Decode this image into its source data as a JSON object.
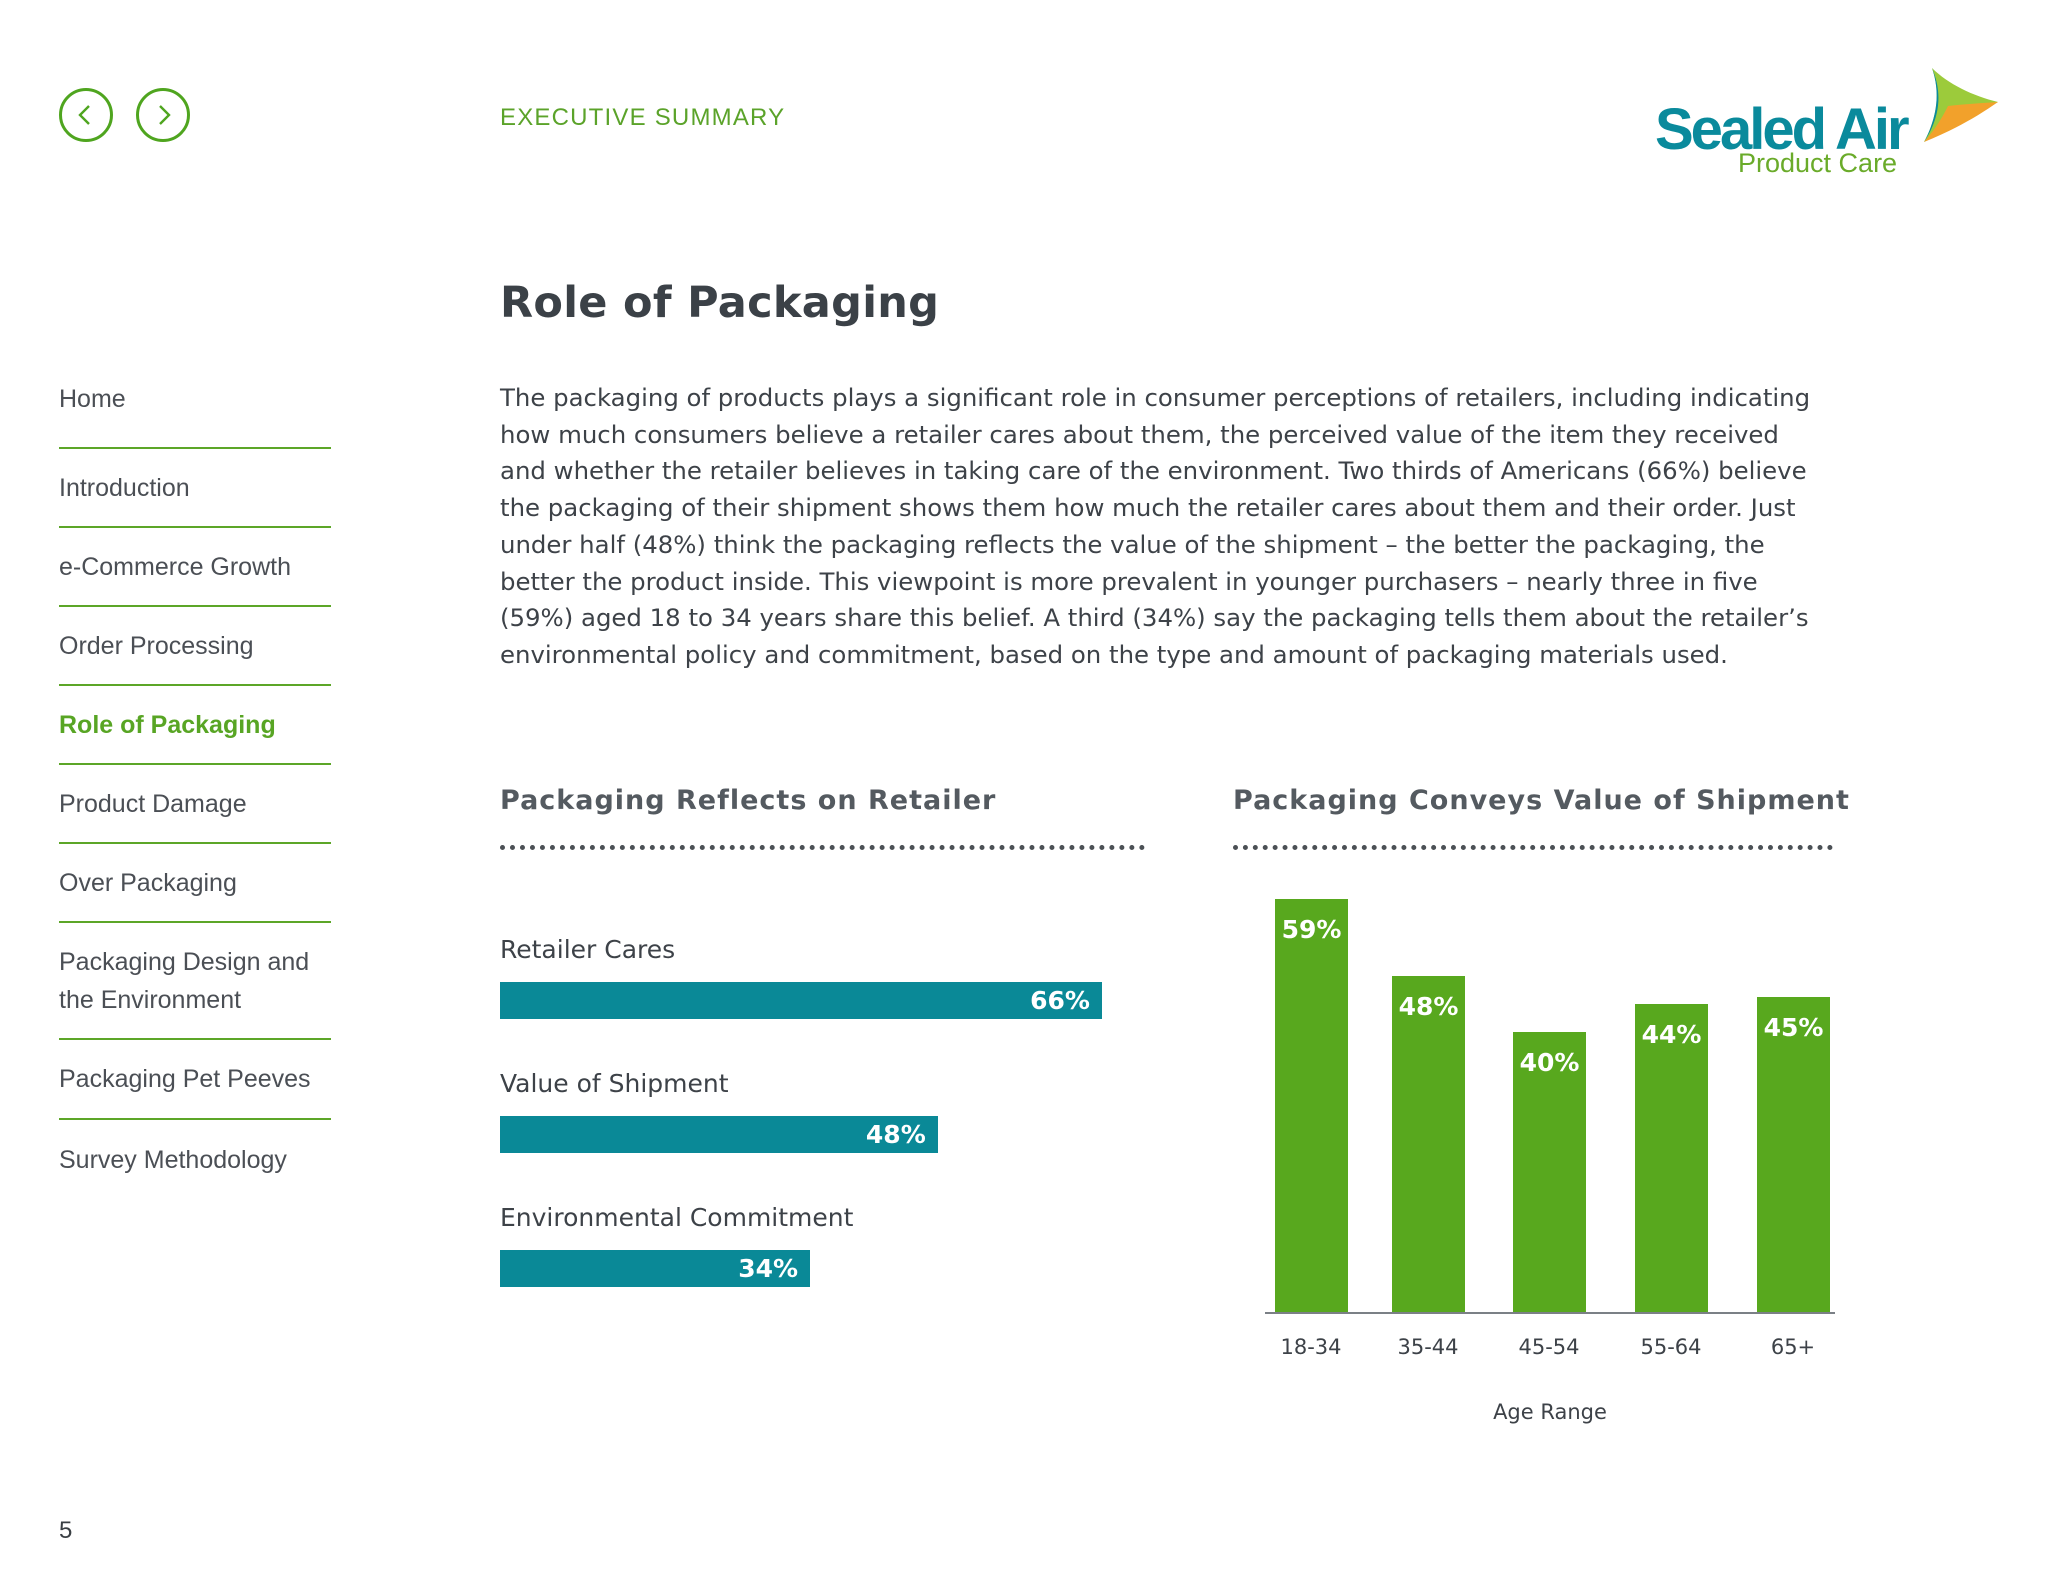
{
  "header": {
    "section_label": "EXECUTIVE SUMMARY",
    "logo_name": "Sealed Air",
    "logo_subtitle": "Product Care",
    "prev_icon": "chevron-left-icon",
    "next_icon": "chevron-right-icon"
  },
  "sidebar": {
    "items": [
      {
        "label": "Home"
      },
      {
        "label": "Introduction"
      },
      {
        "label": "e-Commerce Growth"
      },
      {
        "label": "Order Processing"
      },
      {
        "label": "Role of Packaging",
        "active": true
      },
      {
        "label": "Product Damage"
      },
      {
        "label": "Over Packaging"
      },
      {
        "label": "Packaging Design and the Environment"
      },
      {
        "label": "Packaging Pet Peeves"
      },
      {
        "label": "Survey Methodology"
      }
    ],
    "page_number": "5"
  },
  "main": {
    "title": "Role of Packaging",
    "body": "The packaging of products plays a significant role in consumer perceptions of retailers, including indicating how much consumers believe a retailer cares about them, the perceived value of the item they received and whether the retailer believes in taking care of the environment. Two thirds of Americans (66%) believe the packaging of their shipment shows them how much the retailer cares about them and their order. Just under half (48%) think the packaging reflects the value of the shipment – the better the packaging, the better the product inside. This viewpoint is more prevalent in younger purchasers – nearly three in five (59%) aged 18 to 34 years share this belief. A third (34%) say the packaging tells them about the retailer’s environmental policy and commitment, based on the type and amount of packaging materials used."
  },
  "colors": {
    "accent_green": "#58a81e",
    "teal": "#0a8997",
    "text": "#3d4248"
  },
  "chart_data": [
    {
      "type": "bar",
      "orientation": "horizontal",
      "title": "Packaging Reflects on Retailer",
      "categories": [
        "Retailer Cares",
        "Value of Shipment",
        "Environmental Commitment"
      ],
      "values": [
        66,
        48,
        34
      ],
      "labels": [
        "66%",
        "48%",
        "34%"
      ],
      "xlim": [
        0,
        100
      ],
      "color": "#0a8997"
    },
    {
      "type": "bar",
      "orientation": "vertical",
      "title": "Packaging Conveys Value of Shipment",
      "categories": [
        "18-34",
        "35-44",
        "45-54",
        "55-64",
        "65+"
      ],
      "values": [
        59,
        48,
        40,
        44,
        45
      ],
      "labels": [
        "59%",
        "48%",
        "40%",
        "44%",
        "45%"
      ],
      "xlabel": "Age Range",
      "ylim": [
        0,
        60
      ],
      "color": "#58a81e"
    }
  ]
}
